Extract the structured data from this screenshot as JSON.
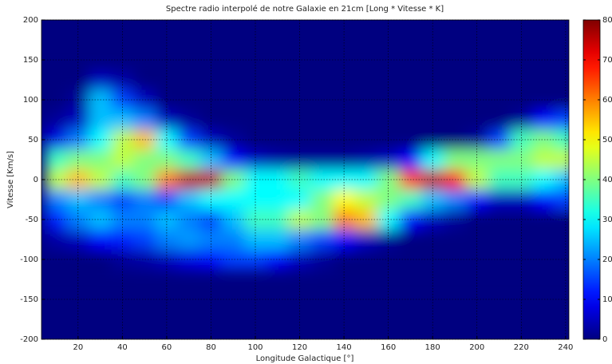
{
  "chart_data": {
    "type": "heatmap",
    "title": "Spectre radio interpolé de notre Galaxie en 21cm [Long * Vitesse * K]",
    "x_label": "Longitude Galactique [°]",
    "y_label": "Vitesse [Km/s]",
    "colormap": "jet",
    "grid": true,
    "xlim": [
      3.5,
      241.5
    ],
    "ylim": [
      -200,
      200
    ],
    "xticks": [
      20,
      40,
      60,
      80,
      100,
      120,
      140,
      160,
      180,
      200,
      220,
      240
    ],
    "yticks": [
      -200,
      -150,
      -100,
      -50,
      0,
      50,
      100,
      150,
      200
    ],
    "clim": [
      0,
      80
    ],
    "cticks": [
      0,
      10,
      20,
      30,
      40,
      50,
      60,
      70,
      80
    ],
    "x": [
      10,
      20,
      30,
      40,
      50,
      60,
      70,
      80,
      90,
      100,
      110,
      120,
      130,
      140,
      150,
      160,
      170,
      180,
      190,
      200,
      210,
      220,
      230,
      240
    ],
    "y": [
      125,
      100,
      75,
      50,
      25,
      0,
      -25,
      -50,
      -75,
      -100
    ],
    "z": [
      [
        0,
        0,
        5,
        3,
        0,
        0,
        0,
        0,
        0,
        0,
        0,
        0,
        0,
        0,
        0,
        0,
        0,
        0,
        0,
        0,
        0,
        0,
        0,
        0
      ],
      [
        0,
        2,
        25,
        15,
        5,
        0,
        0,
        0,
        0,
        0,
        0,
        0,
        0,
        0,
        0,
        0,
        0,
        0,
        0,
        0,
        0,
        0,
        0,
        0
      ],
      [
        2,
        5,
        25,
        25,
        20,
        5,
        2,
        0,
        0,
        0,
        0,
        0,
        0,
        0,
        0,
        0,
        0,
        0,
        0,
        0,
        0,
        2,
        10,
        15
      ],
      [
        8,
        20,
        30,
        45,
        55,
        30,
        15,
        5,
        2,
        0,
        0,
        0,
        0,
        0,
        0,
        0,
        0,
        0,
        0,
        2,
        15,
        35,
        40,
        35
      ],
      [
        35,
        40,
        40,
        45,
        40,
        40,
        35,
        25,
        10,
        5,
        3,
        2,
        2,
        2,
        3,
        5,
        10,
        30,
        40,
        40,
        40,
        40,
        45,
        45
      ],
      [
        45,
        55,
        45,
        35,
        40,
        60,
        75,
        75,
        40,
        30,
        30,
        35,
        30,
        30,
        30,
        40,
        65,
        75,
        70,
        45,
        35,
        35,
        30,
        25
      ],
      [
        20,
        25,
        20,
        15,
        20,
        15,
        25,
        30,
        30,
        30,
        30,
        30,
        40,
        50,
        45,
        40,
        35,
        25,
        20,
        10,
        5,
        5,
        10,
        15
      ],
      [
        12,
        20,
        25,
        20,
        20,
        25,
        20,
        15,
        25,
        35,
        35,
        45,
        40,
        60,
        55,
        30,
        10,
        5,
        2,
        0,
        0,
        0,
        0,
        0
      ],
      [
        3,
        5,
        10,
        12,
        15,
        20,
        22,
        20,
        20,
        25,
        25,
        20,
        15,
        10,
        5,
        2,
        0,
        0,
        0,
        0,
        0,
        0,
        0,
        0
      ],
      [
        0,
        0,
        0,
        2,
        3,
        5,
        8,
        10,
        15,
        15,
        10,
        5,
        2,
        0,
        0,
        0,
        0,
        0,
        0,
        0,
        0,
        0,
        0,
        0
      ]
    ]
  }
}
